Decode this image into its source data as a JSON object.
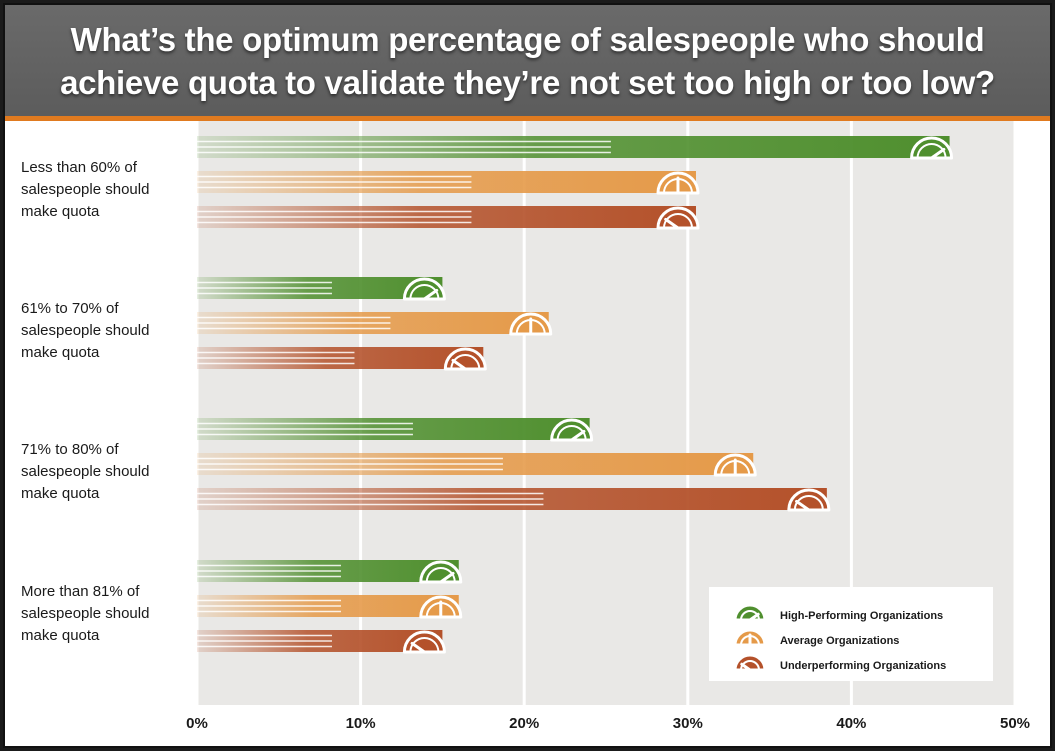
{
  "colors": {
    "high": "#4f8f2e",
    "average": "#e59a49",
    "under": "#b4512a",
    "panel": "#e9e8e6",
    "title_bar": "#606060",
    "accent": "#e07a1f"
  },
  "chart_data": {
    "type": "bar",
    "orientation": "horizontal",
    "title": "What’s the optimum percentage of salespeople who should achieve quota to validate they’re not set too high or too low?",
    "categories": [
      [
        "Less than 60% of",
        "salespeople should",
        "make quota"
      ],
      [
        "61% to 70% of",
        "salespeople should",
        "make quota"
      ],
      [
        "71% to 80% of",
        "salespeople should",
        "make quota"
      ],
      [
        "More than 81% of",
        "salespeople should",
        "make quota"
      ]
    ],
    "series": [
      {
        "name": "High-Performing Organizations",
        "key": "high",
        "values": [
          46,
          15,
          24,
          16
        ]
      },
      {
        "name": "Average Organizations",
        "key": "average",
        "values": [
          30.5,
          21.5,
          34,
          16
        ]
      },
      {
        "name": "Underperforming Organizations",
        "key": "under",
        "values": [
          30.5,
          17.5,
          38.5,
          15
        ]
      }
    ],
    "x_ticks": [
      "0%",
      "10%",
      "20%",
      "30%",
      "40%",
      "50%"
    ],
    "xlim": [
      0,
      50
    ],
    "grid": true,
    "legend": "bottom-right"
  }
}
